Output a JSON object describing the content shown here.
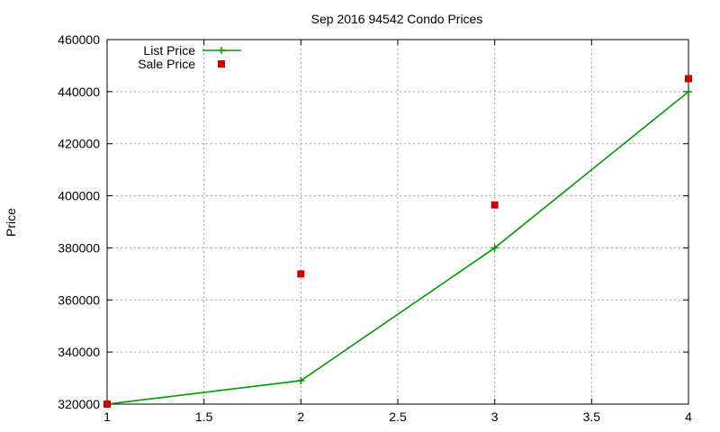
{
  "chart_data": {
    "type": "line",
    "title": "Sep 2016 94542 Condo Prices",
    "xlabel": "",
    "ylabel": "Price",
    "xlim": [
      1,
      4
    ],
    "ylim": [
      320000,
      460000
    ],
    "x_ticks": [
      "1",
      "1.5",
      "2",
      "2.5",
      "3",
      "3.5",
      "4"
    ],
    "y_ticks": [
      "320000",
      "340000",
      "360000",
      "380000",
      "400000",
      "420000",
      "440000",
      "460000"
    ],
    "grid": true,
    "legend_position": "top-left",
    "series": [
      {
        "name": "List Price",
        "style": "line-with-plus-markers",
        "color": "#009900",
        "x": [
          1,
          2,
          3,
          4
        ],
        "y": [
          320000,
          329000,
          380000,
          440000
        ]
      },
      {
        "name": "Sale Price",
        "style": "square-markers",
        "color": "#cc0000",
        "x": [
          1,
          2,
          3,
          4
        ],
        "y": [
          320000,
          370000,
          396500,
          445000
        ]
      }
    ]
  }
}
